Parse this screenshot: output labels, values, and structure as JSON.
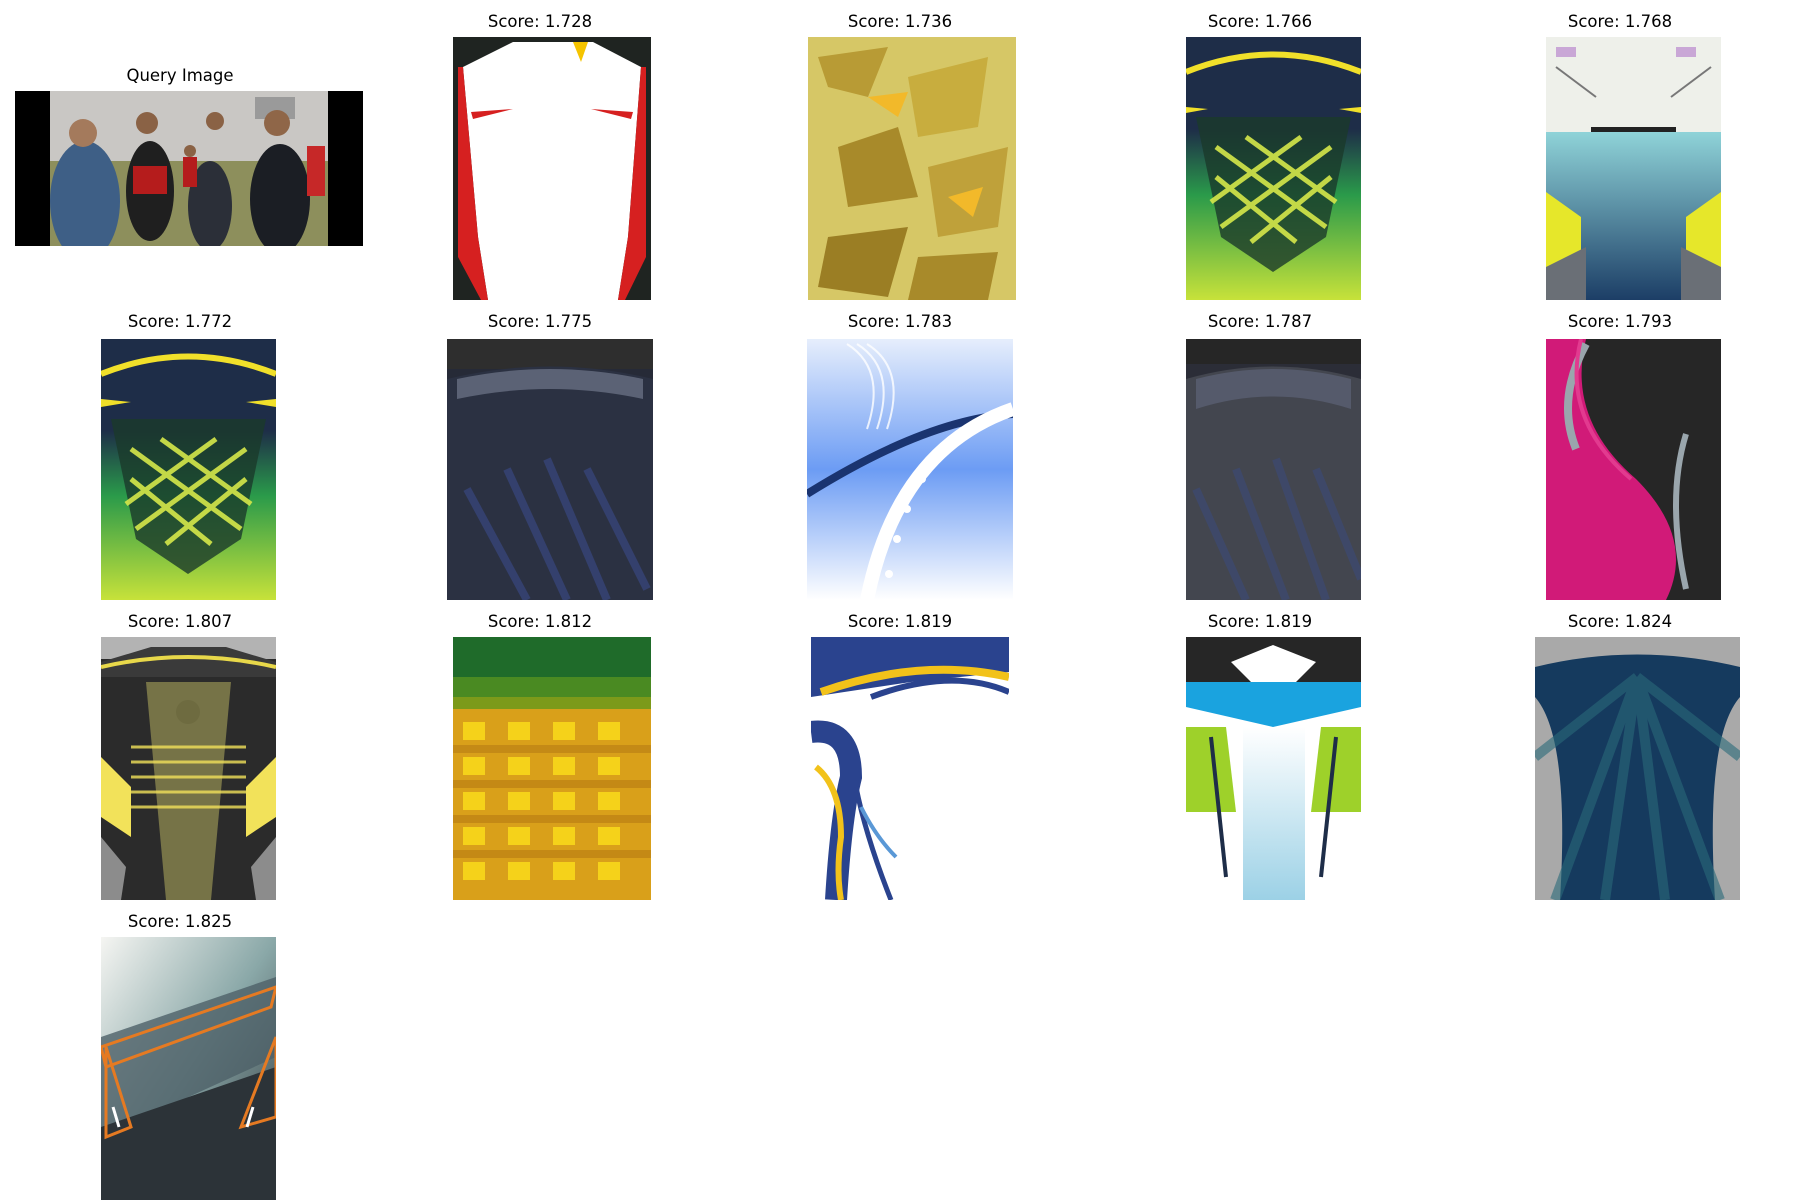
{
  "query": {
    "label": "Query Image"
  },
  "results": [
    {
      "score": "Score: 1.728",
      "thumb": "white-red-black-jersey-icon"
    },
    {
      "score": "Score: 1.736",
      "thumb": "yellow-camo-jersey-icon"
    },
    {
      "score": "Score: 1.766",
      "thumb": "navy-green-yellow-net-jersey-icon"
    },
    {
      "score": "Score: 1.768",
      "thumb": "white-teal-yellow-jersey-icon"
    },
    {
      "score": "Score: 1.772",
      "thumb": "navy-green-yellow-net-jersey-icon"
    },
    {
      "score": "Score: 1.775",
      "thumb": "dark-navy-halftone-jersey-icon"
    },
    {
      "score": "Score: 1.783",
      "thumb": "blue-white-stars-jersey-icon"
    },
    {
      "score": "Score: 1.787",
      "thumb": "grey-halftone-jersey-icon"
    },
    {
      "score": "Score: 1.793",
      "thumb": "magenta-black-jersey-icon"
    },
    {
      "score": "Score: 1.807",
      "thumb": "black-yellow-floral-jersey-icon"
    },
    {
      "score": "Score: 1.812",
      "thumb": "green-orange-check-jersey-icon"
    },
    {
      "score": "Score: 1.819",
      "thumb": "white-blue-yellow-swirl-jersey-icon"
    },
    {
      "score": "Score: 1.819",
      "thumb": "white-blue-lime-jersey-icon"
    },
    {
      "score": "Score: 1.824",
      "thumb": "navy-teal-rays-jersey-icon"
    },
    {
      "score": "Score: 1.825",
      "thumb": "teal-orange-geometric-jersey-icon"
    }
  ]
}
